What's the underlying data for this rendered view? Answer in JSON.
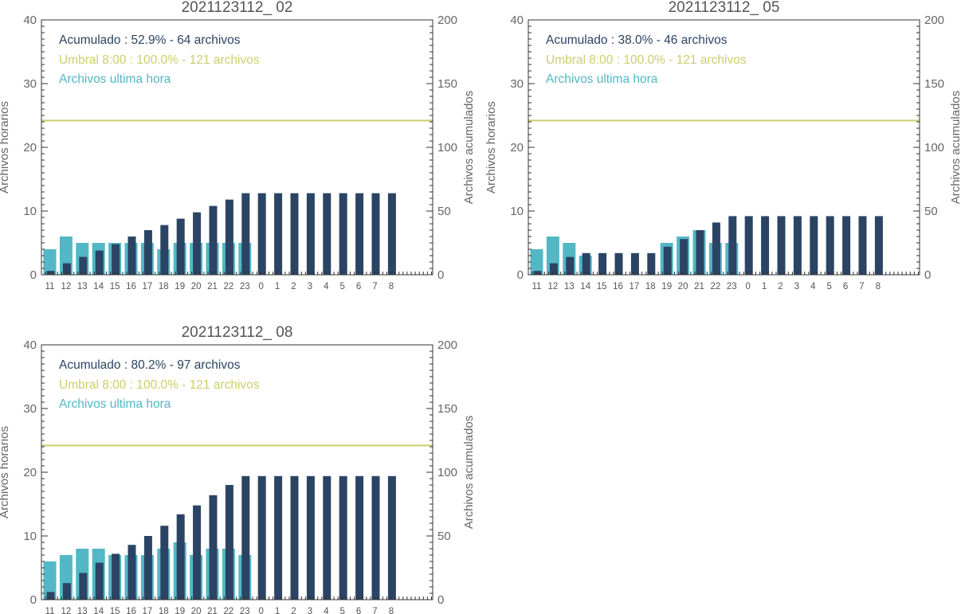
{
  "colors": {
    "accumulated": "#2b4464",
    "hourly": "#53b7c6",
    "threshold": "#c9cf6b",
    "axis": "#333333",
    "text": "#666666"
  },
  "chart_data": [
    {
      "type": "bar",
      "title": "2021123112_ 02",
      "ylabel_left": "Archivos horarios",
      "ylabel_right": "Archivos acumulados",
      "ylim_left": [
        0,
        40
      ],
      "ylim_right": [
        0,
        200
      ],
      "yticks_left": [
        "0",
        "10",
        "20",
        "30",
        "40"
      ],
      "yticks_right": [
        "0",
        "50",
        "100",
        "150",
        "200"
      ],
      "categories": [
        "11",
        "12",
        "13",
        "14",
        "15",
        "16",
        "17",
        "18",
        "19",
        "20",
        "21",
        "22",
        "23",
        "0",
        "1",
        "2",
        "3",
        "4",
        "5",
        "6",
        "7",
        "8"
      ],
      "legend": {
        "accumulated": "Acumulado : 52.9% - 64 archivos",
        "threshold": "Umbral 8:00 : 100.0% - 121 archivos",
        "hourly": "Archivos ultima hora"
      },
      "series": [
        {
          "name": "Archivos ultima hora",
          "axis": "left",
          "values": [
            4,
            6,
            5,
            5,
            5,
            5,
            5,
            4,
            5,
            5,
            5,
            5,
            5,
            null,
            null,
            null,
            null,
            null,
            null,
            null,
            null,
            null
          ]
        },
        {
          "name": "Acumulado",
          "axis": "right",
          "values": [
            3,
            9,
            14,
            19,
            24,
            30,
            35,
            39,
            44,
            49,
            54,
            59,
            64,
            64,
            64,
            64,
            64,
            64,
            64,
            64,
            64,
            64
          ]
        }
      ],
      "threshold_value": 121
    },
    {
      "type": "bar",
      "title": "2021123112_ 05",
      "ylabel_left": "Archivos horarios",
      "ylabel_right": "Archivos acumulados",
      "ylim_left": [
        0,
        40
      ],
      "ylim_right": [
        0,
        200
      ],
      "yticks_left": [
        "0",
        "10",
        "20",
        "30",
        "40"
      ],
      "yticks_right": [
        "0",
        "50",
        "100",
        "150",
        "200"
      ],
      "categories": [
        "11",
        "12",
        "13",
        "14",
        "15",
        "16",
        "17",
        "18",
        "19",
        "20",
        "21",
        "22",
        "23",
        "0",
        "1",
        "2",
        "3",
        "4",
        "5",
        "6",
        "7",
        "8"
      ],
      "legend": {
        "accumulated": "Acumulado : 38.0% - 46 archivos",
        "threshold": "Umbral 8:00 : 100.0% - 121 archivos",
        "hourly": "Archivos ultima hora"
      },
      "series": [
        {
          "name": "Archivos ultima hora",
          "axis": "left",
          "values": [
            4,
            6,
            5,
            3,
            null,
            null,
            null,
            null,
            5,
            6,
            7,
            5,
            5,
            null,
            null,
            null,
            null,
            null,
            null,
            null,
            null,
            null
          ]
        },
        {
          "name": "Acumulado",
          "axis": "right",
          "values": [
            3,
            9,
            14,
            17,
            17,
            17,
            17,
            17,
            22,
            28,
            35,
            41,
            46,
            46,
            46,
            46,
            46,
            46,
            46,
            46,
            46,
            46
          ]
        }
      ],
      "threshold_value": 121
    },
    {
      "type": "bar",
      "title": "2021123112_ 08",
      "ylabel_left": "Archivos horarios",
      "ylabel_right": "Archivos acumulados",
      "ylim_left": [
        0,
        40
      ],
      "ylim_right": [
        0,
        200
      ],
      "yticks_left": [
        "0",
        "10",
        "20",
        "30",
        "40"
      ],
      "yticks_right": [
        "0",
        "50",
        "100",
        "150",
        "200"
      ],
      "categories": [
        "11",
        "12",
        "13",
        "14",
        "15",
        "16",
        "17",
        "18",
        "19",
        "20",
        "21",
        "22",
        "23",
        "0",
        "1",
        "2",
        "3",
        "4",
        "5",
        "6",
        "7",
        "8"
      ],
      "legend": {
        "accumulated": "Acumulado : 80.2% - 97 archivos",
        "threshold": "Umbral 8:00 : 100.0% - 121 archivos",
        "hourly": "Archivos ultima hora"
      },
      "series": [
        {
          "name": "Archivos ultima hora",
          "axis": "left",
          "values": [
            6,
            7,
            8,
            8,
            7,
            7,
            7,
            8,
            9,
            7,
            8,
            8,
            7,
            null,
            null,
            null,
            null,
            null,
            null,
            null,
            null,
            null
          ]
        },
        {
          "name": "Acumulado",
          "axis": "right",
          "values": [
            6,
            13,
            21,
            29,
            36,
            43,
            50,
            58,
            67,
            74,
            82,
            90,
            97,
            97,
            97,
            97,
            97,
            97,
            97,
            97,
            97,
            97
          ]
        }
      ],
      "threshold_value": 121
    }
  ]
}
